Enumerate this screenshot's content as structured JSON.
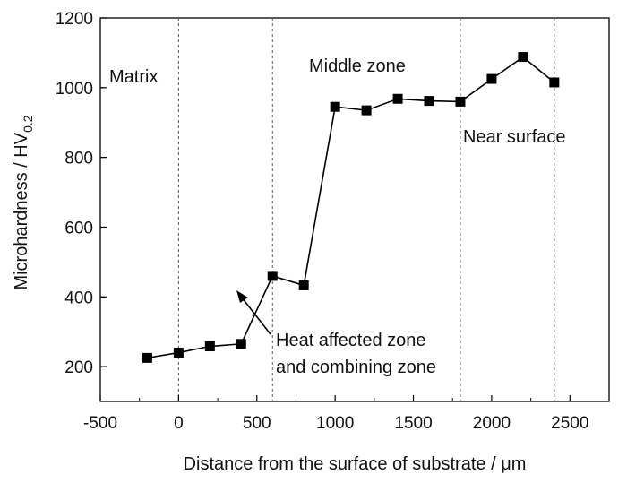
{
  "chart_data": {
    "type": "line",
    "xlabel": "Distance from the surface of substrate / μm",
    "ylabel_main": "Microhardness / HV",
    "ylabel_sub": "0.2",
    "xlim": [
      -500,
      2750
    ],
    "ylim": [
      100,
      1200
    ],
    "xticks": [
      -500,
      0,
      500,
      1000,
      1500,
      2000,
      2500
    ],
    "yticks": [
      200,
      400,
      600,
      800,
      1000,
      1200
    ],
    "grid": false,
    "series": [
      {
        "marker": "square",
        "color": "#000000",
        "x": [
          -200,
          0,
          200,
          400,
          600,
          800,
          1000,
          1200,
          1400,
          1600,
          1800,
          2000,
          2200,
          2400
        ],
        "y": [
          225,
          240,
          258,
          265,
          460,
          433,
          945,
          935,
          968,
          962,
          960,
          1025,
          1088,
          1015
        ]
      }
    ],
    "boundaries": [
      0,
      600,
      1800,
      2400
    ],
    "annotations": {
      "matrix": "Matrix",
      "middle_zone": "Middle zone",
      "near_surface": "Near surface",
      "haz_line1": "Heat affected zone",
      "haz_line2": "and combining zone"
    }
  }
}
